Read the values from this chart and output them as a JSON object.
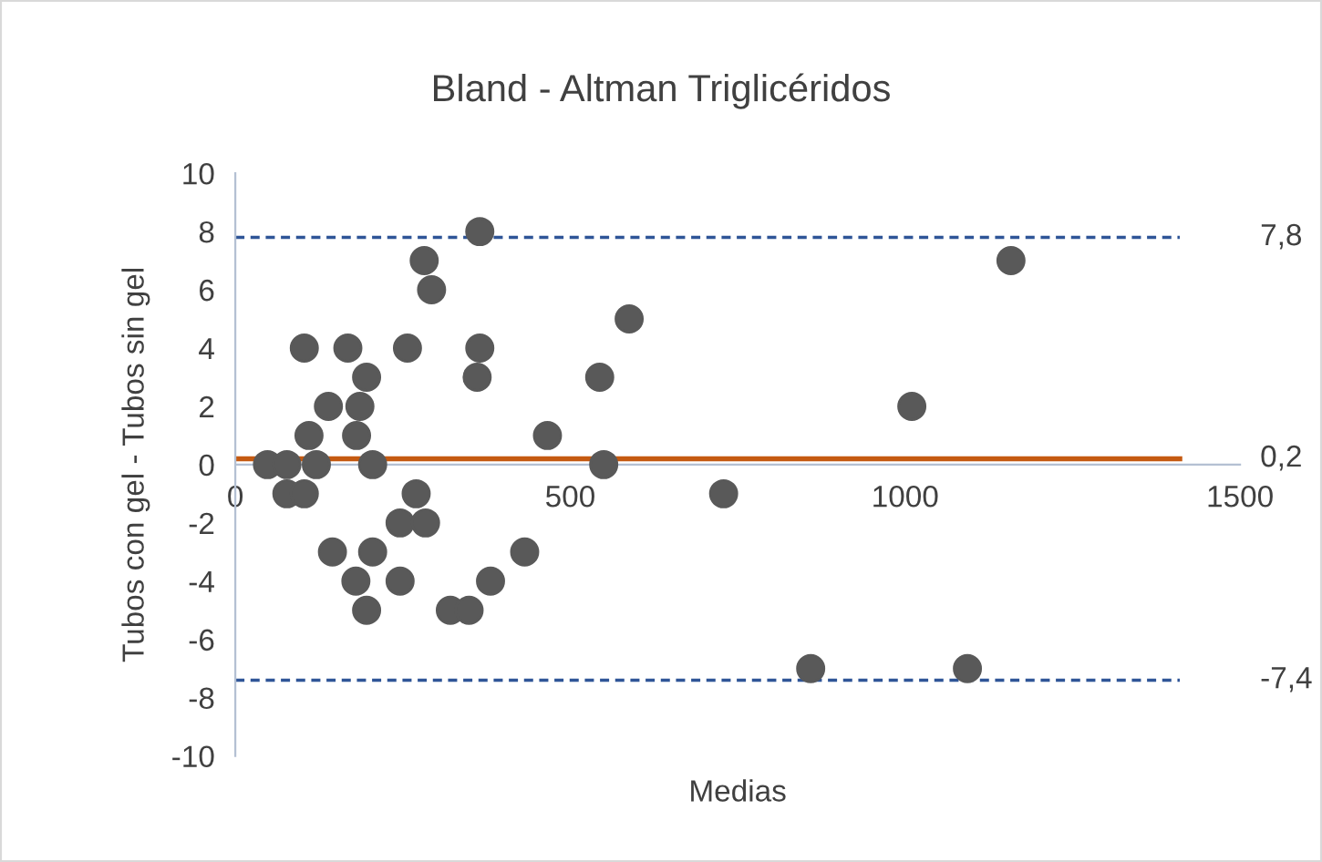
{
  "chart_data": {
    "type": "scatter",
    "title": "Bland - Altman Triglicéridos",
    "xlabel": "Medias",
    "ylabel": "Tubos con gel - Tubos sin gel",
    "x": [
      48,
      77,
      77,
      103,
      103,
      110,
      121,
      139,
      145,
      168,
      180,
      181,
      186,
      196,
      196,
      205,
      205,
      246,
      246,
      257,
      270,
      282,
      284,
      293,
      321,
      349,
      361,
      365,
      365,
      381,
      432,
      466,
      544,
      550,
      588,
      729,
      1010,
      1158,
      859,
      1093
    ],
    "series": [
      {
        "color": "#595959",
        "values": [
          0,
          0,
          -1,
          -1,
          4,
          1,
          0,
          2,
          -3,
          4,
          -4,
          1,
          2,
          3,
          -5,
          0,
          -3,
          -2,
          -4,
          4,
          -1,
          7,
          -2,
          6,
          -5,
          -5,
          3,
          8,
          4,
          -4,
          -3,
          1,
          3,
          0,
          5,
          -1,
          2,
          7,
          -7,
          -7
        ]
      }
    ],
    "marker": "circle",
    "grid": false,
    "legend": false,
    "xlim": [
      0,
      1500
    ],
    "xticks": [
      0,
      500,
      1000,
      1500
    ],
    "ylim": [
      -10,
      10
    ],
    "yticks": [
      -10,
      -8,
      -6,
      -4,
      -2,
      0,
      2,
      4,
      6,
      8,
      10
    ],
    "ref_lines": [
      {
        "axis": "y",
        "value": 7.8,
        "label": "7,8",
        "color": "#2f5597",
        "line_style": "dashed"
      },
      {
        "axis": "y",
        "value": 0.2,
        "label": "0,2",
        "color": "#c55a11",
        "line_style": "solid"
      },
      {
        "axis": "y",
        "value": -7.4,
        "label": "-7,4",
        "color": "#2f5597",
        "line_style": "dashed"
      }
    ]
  }
}
